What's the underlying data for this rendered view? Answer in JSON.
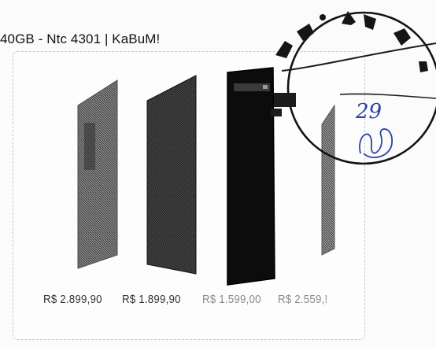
{
  "page": {
    "title": "40GB - Ntc 4301 | KaBuM!"
  },
  "products": [
    {
      "price": "R$ 2.899,90",
      "icon": "desktop-tower-light-icon"
    },
    {
      "price": "R$ 1.899,90",
      "icon": "desktop-tower-dark-icon"
    },
    {
      "price": "R$ 1.599,00",
      "icon": "desktop-tower-black-icon"
    },
    {
      "price": "R$ 2.559,!",
      "icon": "desktop-tower-light-icon"
    }
  ],
  "stamp": {
    "letters": "A  M  A",
    "handwritten_number": "29",
    "signature": "rubric"
  },
  "colors": {
    "stamp_ink": "#1b1b1b",
    "pen_ink": "#2a43a8",
    "price_text": "#333333"
  }
}
